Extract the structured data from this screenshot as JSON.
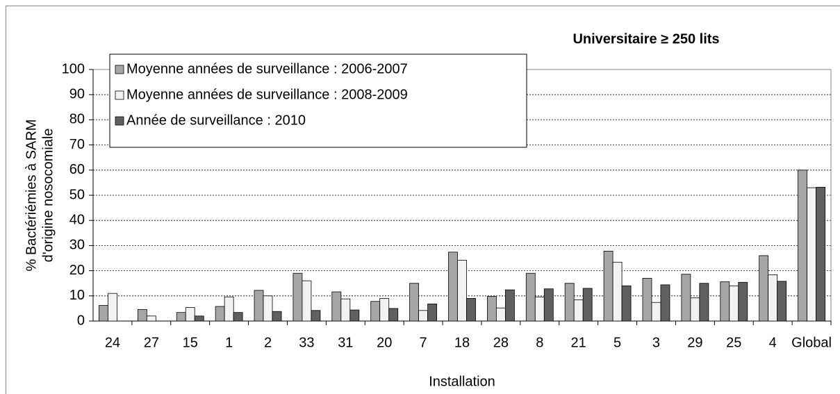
{
  "chart_data": {
    "type": "bar",
    "title": "Universitaire ≥ 250 lits",
    "y_label": [
      "% Bactériémies à SARM",
      "d'origine nosocomiale"
    ],
    "x_label": "Installation",
    "categories": [
      "24",
      "27",
      "15",
      "1",
      "2",
      "33",
      "31",
      "20",
      "7",
      "18",
      "28",
      "8",
      "21",
      "5",
      "3",
      "29",
      "25",
      "4",
      "Global"
    ],
    "series": [
      {
        "name": "Moyenne années de surveillance : 2006-2007",
        "color": "#a6a6a6",
        "values": [
          6.2,
          4.6,
          3.4,
          5.8,
          12.2,
          19,
          11.6,
          7.8,
          15,
          27.4,
          9.8,
          19,
          15,
          27.8,
          17,
          18.6,
          15.6,
          26,
          60
        ]
      },
      {
        "name": "Moyenne années de surveillance : 2008-2009",
        "color": "#f2f2f2",
        "values": [
          11,
          2,
          5.4,
          9.6,
          10,
          16,
          8.8,
          9,
          4.2,
          24.2,
          5.2,
          9.6,
          8.4,
          23.4,
          7.4,
          9.2,
          14,
          18.4,
          53
        ]
      },
      {
        "name": "Année de surveillance : 2010",
        "color": "#606060",
        "values": [
          0,
          0,
          2,
          3.4,
          3.8,
          4.2,
          4.4,
          5,
          6.8,
          9,
          12.4,
          12.8,
          13,
          14,
          14.4,
          15,
          15.4,
          15.8,
          53.2
        ]
      }
    ],
    "ylim": [
      0,
      100
    ],
    "yticks": [
      0,
      10,
      20,
      30,
      40,
      50,
      60,
      70,
      80,
      90,
      100
    ],
    "grid": true,
    "legend": "top-left"
  }
}
